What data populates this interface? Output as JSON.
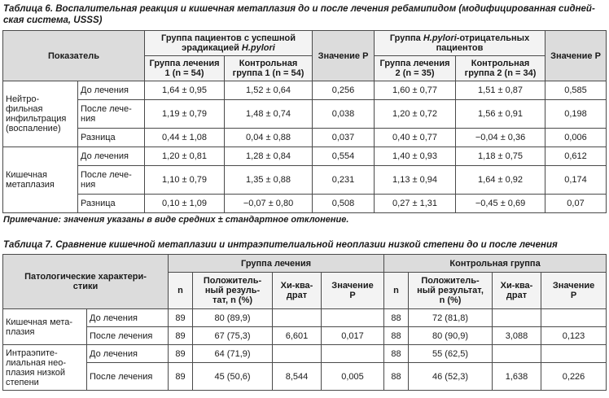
{
  "table6": {
    "caption_prefix": "Таблица 6.",
    "caption_line1": "Воспалительная реакция и кишечная метаплазия до и после лечения ребамипидом (модифицированная сидней-",
    "caption_line2": "ская система, USSS)",
    "headers": {
      "indicator": "Показатель",
      "group_success_a": "Группа пациентов с успешной",
      "group_success_b": "эрадикацией",
      "hpylori": "H.pylori",
      "value_p": "Значение P",
      "group_neg_a": "Группа",
      "group_neg_b": "-отрицательных",
      "group_neg_c": "пациентов",
      "treat1": "Группа лечения 1 (n = 54)",
      "control1": "Контрольная группа 1 (n = 54)",
      "treat2": "Группа лечения 2 (n = 35)",
      "control2": "Контрольная группа 2 (n = 34)"
    },
    "sections": [
      {
        "name_lines": [
          "Нейтро-",
          "фильная",
          "инфильтрация",
          "(воспаление)"
        ],
        "rows": [
          {
            "label": "До лечения",
            "t1": "1,64 ± 0,95",
            "c1": "1,52 ± 0,64",
            "p1": "0,256",
            "t2": "1,60 ± 0,77",
            "c2": "1,51 ± 0,87",
            "p2": "0,585"
          },
          {
            "label_a": "После лече-",
            "label_b": "ния",
            "t1": "1,19 ± 0,79",
            "c1": "1,48 ± 0,74",
            "p1": "0,038",
            "t2": "1,20 ± 0,72",
            "c2": "1,56 ± 0,91",
            "p2": "0,198"
          },
          {
            "label": "Разница",
            "t1": "0,44 ± 1,08",
            "c1": "0,04 ± 0,88",
            "p1": "0,037",
            "t2": "0,40 ± 0,77",
            "c2": "−0,04 ± 0,36",
            "p2": "0,006"
          }
        ]
      },
      {
        "name_lines": [
          "Кишечная",
          "метаплазия"
        ],
        "rows": [
          {
            "label": "До лечения",
            "t1": "1,20 ± 0,81",
            "c1": "1,28 ± 0,84",
            "p1": "0,554",
            "t2": "1,40 ± 0,93",
            "c2": "1,18 ± 0,75",
            "p2": "0,612"
          },
          {
            "label_a": "После лече-",
            "label_b": "ния",
            "t1": "1,10 ± 0,79",
            "c1": "1,35 ± 0,88",
            "p1": "0,231",
            "t2": "1,13 ± 0,94",
            "c2": "1,64 ± 0,92",
            "p2": "0,174"
          },
          {
            "label": "Разница",
            "t1": "0,10 ± 1,09",
            "c1": "−0,07 ± 0,80",
            "p1": "0,508",
            "t2": "0,27 ± 1,31",
            "c2": "−0,45 ± 0,69",
            "p2": "0,07"
          }
        ]
      }
    ],
    "note": "Примечание: значения указаны в виде средних ± стандартное отклонение."
  },
  "table7": {
    "caption_prefix": "Таблица 7.",
    "caption": "Сравнение кишечной метаплазии и интраэпителиальной неоплазии низкой степени до и после лечения",
    "headers": {
      "pathology_a": "Патологические характери-",
      "pathology_b": "стики",
      "treat_group": "Группа лечения",
      "control_group": "Контрольная группа",
      "n": "n",
      "positive_a": "Положитель-",
      "positive_b": "ный резуль-",
      "positive_c": "тат, n (%)",
      "positive2_a": "Положитель-",
      "positive2_b": "ный результат,",
      "positive2_c": "n (%)",
      "chi_a": "Хи-ква-",
      "chi_b": "драт",
      "value_p_a": "Значение",
      "value_p_b": "P"
    },
    "sections": [
      {
        "name_lines": [
          "Кишечная мета-",
          "плазия"
        ],
        "rows": [
          {
            "label": "До лечения",
            "n1": "89",
            "pos1": "80 (89,9)",
            "chi1": "",
            "p1": "",
            "n2": "88",
            "pos2": "72 (81,8)",
            "chi2": "",
            "p2": ""
          },
          {
            "label": "После лечения",
            "n1": "89",
            "pos1": "67 (75,3)",
            "chi1": "6,601",
            "p1": "0,017",
            "n2": "88",
            "pos2": "80 (90,9)",
            "chi2": "3,088",
            "p2": "0,123"
          }
        ]
      },
      {
        "name_lines": [
          "Интраэпите-",
          "лиальная нео-",
          "плазия низкой",
          "степени"
        ],
        "rows": [
          {
            "label": "До лечения",
            "n1": "89",
            "pos1": "64 (71,9)",
            "chi1": "",
            "p1": "",
            "n2": "88",
            "pos2": "55 (62,5)",
            "chi2": "",
            "p2": ""
          },
          {
            "label": "После лечения",
            "n1": "89",
            "pos1": "45 (50,6)",
            "chi1": "8,544",
            "p1": "0,005",
            "n2": "88",
            "pos2": "46 (52,3)",
            "chi2": "1,638",
            "p2": "0,226"
          }
        ]
      }
    ]
  }
}
